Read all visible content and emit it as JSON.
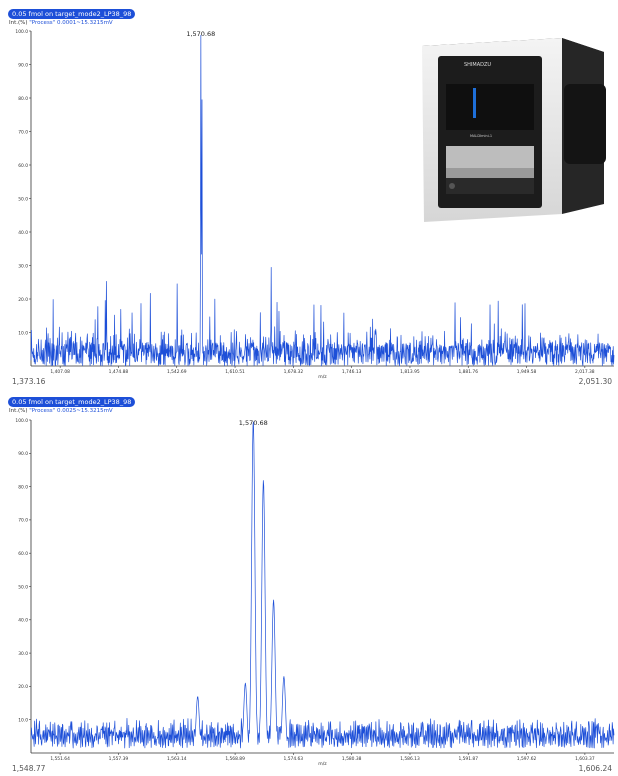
{
  "colors": {
    "line": "#1d4fd8",
    "pill_bg": "#1d4fd8",
    "axis": "#333333"
  },
  "charts": [
    {
      "title": "0.05 fmol on target_mode2_LP38_98",
      "unit": "Int.(%)",
      "process_label": "\"Process\"",
      "process_value": "0.0001~15.3215mV",
      "peak_label": "1,570.68",
      "range_min": "1,373.16",
      "range_max": "2,051.30",
      "xlabel": "m/z"
    },
    {
      "title": "0.05 fmol on target_mode2_LP38_98",
      "unit": "Int.(%)",
      "process_label": "\"Process\"",
      "process_value": "0.0025~15.3215mV",
      "peak_label": "1,570.68",
      "range_min": "1,548.77",
      "range_max": "1,606.24",
      "xlabel": "m/z"
    }
  ],
  "instrument_image": {
    "brand": "SHIMADZU",
    "model": "MALDImini-1"
  },
  "chart_data": [
    {
      "type": "line",
      "title": "0.05 fmol on target_mode2_LP38_98",
      "xlabel": "m/z",
      "ylabel": "Int.(%)",
      "xlim": [
        1373.16,
        2051.3
      ],
      "ylim": [
        0,
        100
      ],
      "y_ticks": [
        "10.0",
        "20.0",
        "30.0",
        "40.0",
        "50.0",
        "60.0",
        "70.0",
        "80.0",
        "90.0",
        "100.0"
      ],
      "x_ticks": [
        "1,407.08",
        "1,474.88",
        "1,542.69",
        "1,610.51",
        "1,678.32",
        "1,746.13",
        "1,813.95",
        "1,881.76",
        "1,949.58",
        "2,017.38"
      ],
      "x_tick_values": [
        1407.08,
        1474.88,
        1542.69,
        1610.51,
        1678.32,
        1746.13,
        1813.95,
        1881.76,
        1949.58,
        2017.38
      ],
      "peaks": [
        {
          "x": 1570.68,
          "y": 100,
          "label": "1,570.68"
        },
        {
          "x": 1572.0,
          "y": 83
        },
        {
          "x": 1571.3,
          "y": 52
        },
        {
          "x": 1652.5,
          "y": 30
        },
        {
          "x": 1460.8,
          "y": 26
        },
        {
          "x": 1543.2,
          "y": 25
        },
        {
          "x": 1512.0,
          "y": 22
        }
      ],
      "noise_level": 7,
      "noise_max": 20
    },
    {
      "type": "line",
      "title": "0.05 fmol on target_mode2_LP38_98",
      "xlabel": "m/z",
      "ylabel": "Int.(%)",
      "xlim": [
        1548.77,
        1606.24
      ],
      "ylim": [
        0,
        100
      ],
      "y_ticks": [
        "10.0",
        "20.0",
        "30.0",
        "40.0",
        "50.0",
        "60.0",
        "70.0",
        "80.0",
        "90.0",
        "100.0"
      ],
      "x_ticks": [
        "1,551.64",
        "1,557.39",
        "1,563.14",
        "1,568.89",
        "1,574.63",
        "1,580.38",
        "1,586.13",
        "1,591.87",
        "1,597.62",
        "1,603.37"
      ],
      "x_tick_values": [
        1551.64,
        1557.39,
        1563.14,
        1568.89,
        1574.63,
        1580.38,
        1586.13,
        1591.87,
        1597.62,
        1603.37
      ],
      "peaks": [
        {
          "x": 1570.68,
          "y": 100,
          "label": "1,570.68"
        },
        {
          "x": 1571.68,
          "y": 82
        },
        {
          "x": 1572.68,
          "y": 46
        },
        {
          "x": 1569.9,
          "y": 21
        },
        {
          "x": 1573.7,
          "y": 23
        },
        {
          "x": 1565.2,
          "y": 17
        }
      ],
      "noise_level": 6,
      "noise_max": 13
    }
  ]
}
